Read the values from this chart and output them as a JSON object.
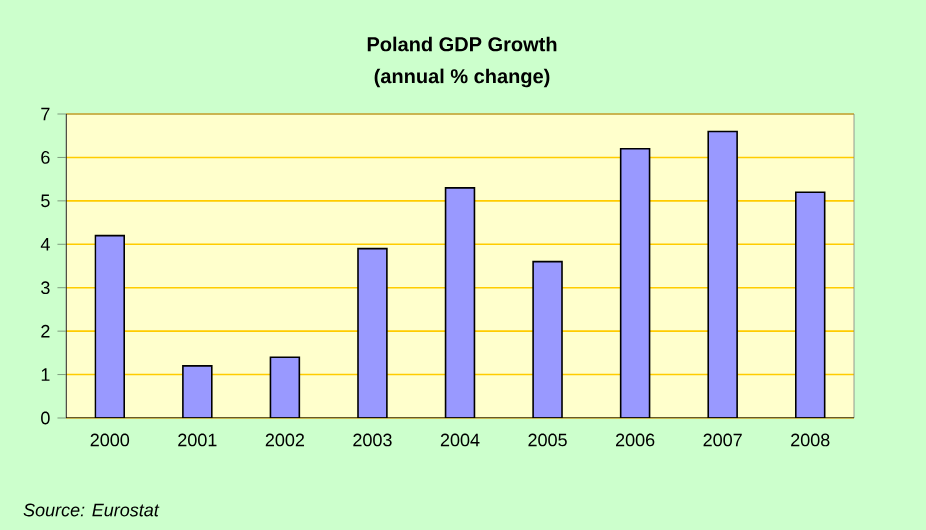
{
  "chart_data": {
    "type": "bar",
    "title": "Poland GDP Growth",
    "subtitle": "(annual % change)",
    "categories": [
      "2000",
      "2001",
      "2002",
      "2003",
      "2004",
      "2005",
      "2006",
      "2007",
      "2008"
    ],
    "values": [
      4.2,
      1.2,
      1.4,
      3.9,
      5.3,
      3.6,
      6.2,
      6.6,
      5.2
    ],
    "color": "#9999ff",
    "ylim": [
      0,
      7
    ],
    "yticks": [
      0,
      1,
      2,
      3,
      4,
      5,
      6,
      7
    ],
    "grid": "y",
    "annotations": [
      "*Source: Eurostat*"
    ]
  }
}
